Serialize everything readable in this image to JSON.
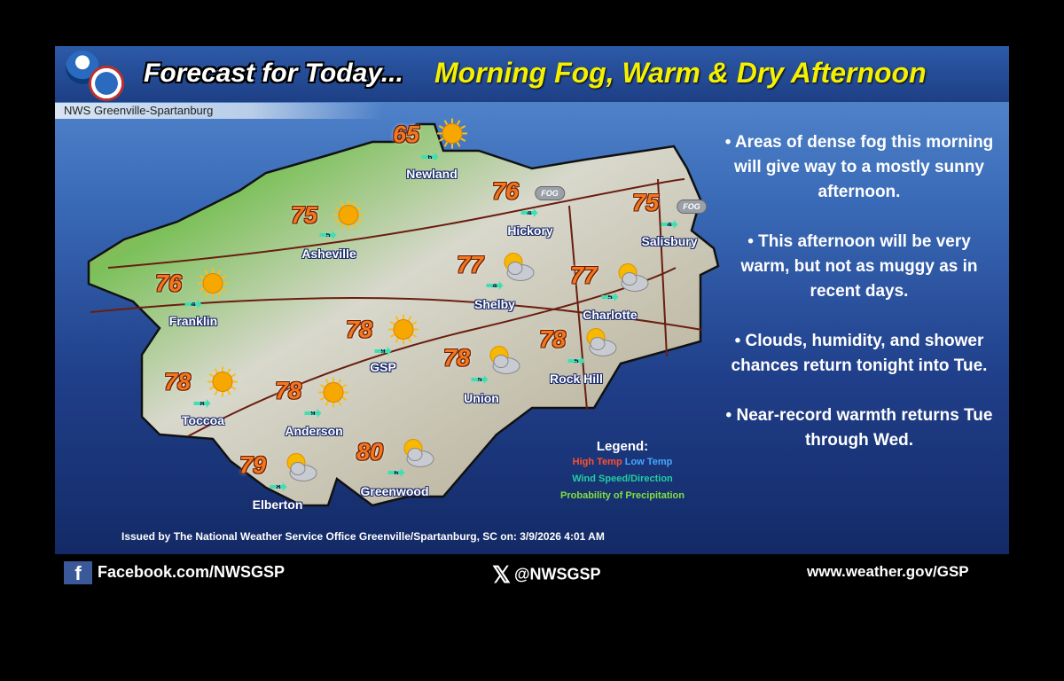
{
  "header": {
    "title": "Forecast for Today...",
    "subtitle": "Morning Fog, Warm & Dry Afternoon",
    "office": "NWS Greenville-Spartanburg",
    "logos": [
      "NOAA",
      "National Weather Service"
    ]
  },
  "cities": [
    {
      "name": "Newland",
      "high": "65",
      "wind": "6",
      "icon": "sunny"
    },
    {
      "name": "Asheville",
      "high": "75",
      "wind": "5",
      "icon": "sunny"
    },
    {
      "name": "Hickory",
      "high": "76",
      "wind": "4",
      "icon": "fog",
      "icon_text": "FOG"
    },
    {
      "name": "Salisbury",
      "high": "75",
      "wind": "4",
      "icon": "fog",
      "icon_text": "FOG"
    },
    {
      "name": "Franklin",
      "high": "76",
      "wind": "4",
      "icon": "sunny"
    },
    {
      "name": "Shelby",
      "high": "77",
      "wind": "4",
      "icon": "partly-cloudy"
    },
    {
      "name": "Charlotte",
      "high": "77",
      "wind": "5",
      "icon": "partly-cloudy"
    },
    {
      "name": "GSP",
      "high": "78",
      "wind": "9",
      "icon": "sunny"
    },
    {
      "name": "Toccoa",
      "high": "78",
      "wind": "8",
      "icon": "sunny"
    },
    {
      "name": "Anderson",
      "high": "78",
      "wind": "9",
      "icon": "sunny"
    },
    {
      "name": "Union",
      "high": "78",
      "wind": "5",
      "icon": "partly-cloudy"
    },
    {
      "name": "Rock Hill",
      "high": "78",
      "wind": "5",
      "icon": "partly-cloudy"
    },
    {
      "name": "Elberton",
      "high": "79",
      "wind": "8",
      "icon": "partly-cloudy"
    },
    {
      "name": "Greenwood",
      "high": "80",
      "wind": "6",
      "icon": "partly-cloudy"
    }
  ],
  "bullets": [
    "Areas of dense fog this morning will give way to a mostly sunny afternoon.",
    "This afternoon will be very warm, but not as muggy as in recent days.",
    "Clouds, humidity, and shower chances return tonight into Tue.",
    "Near-record warmth returns Tue through Wed."
  ],
  "legend": {
    "title": "Legend:",
    "high": "High Temp",
    "low": "Low Temp",
    "wind": "Wind Speed/Direction",
    "pop": "Probability of Precipitation",
    "colors": {
      "high": "#ff5030",
      "low": "#4aa8ff",
      "wind": "#20d0a0",
      "pop": "#80e040"
    }
  },
  "issued": "Issued by The National Weather Service Office Greenville/Spartanburg, SC on: 3/9/2026 4:01 AM",
  "footer": {
    "facebook": "Facebook.com/NWSGSP",
    "x": "@NWSGSP",
    "web": "www.weather.gov/GSP"
  }
}
